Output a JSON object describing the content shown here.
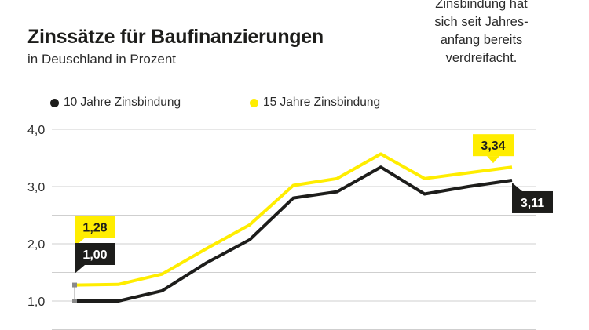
{
  "header": {
    "title": "Zinssätze für Baufinanzierungen",
    "subtitle": "in Deuschland in Prozent"
  },
  "note": {
    "lines": [
      "Zinsbindung hat",
      "sich seit Jahres-",
      "anfang bereits",
      "verdreifacht."
    ]
  },
  "colors": {
    "series_10": "#1d1d1b",
    "series_15": "#ffed00",
    "grid": "#cfcfcf",
    "text": "#1d1d1b"
  },
  "chart_data": {
    "type": "line",
    "title": "Zinssätze für Baufinanzierungen",
    "subtitle": "in Deuschland in Prozent",
    "xlabel": "",
    "ylabel": "",
    "ylim": [
      0.5,
      4.0
    ],
    "yticks": [
      1.0,
      2.0,
      3.0,
      4.0
    ],
    "ytick_labels": [
      "1,0",
      "2,0",
      "3,0",
      "4,0"
    ],
    "grid": true,
    "legend_position": "top-left",
    "x": [
      0,
      1,
      2,
      3,
      4,
      5,
      6,
      7,
      8,
      9,
      10
    ],
    "series": [
      {
        "name": "10 Jahre Zinsbindung",
        "color": "#1d1d1b",
        "values": [
          1.0,
          1.0,
          1.18,
          1.66,
          2.07,
          2.8,
          2.91,
          3.34,
          2.87,
          3.0,
          3.11
        ]
      },
      {
        "name": "15 Jahre Zinsbindung",
        "color": "#ffed00",
        "values": [
          1.28,
          1.29,
          1.47,
          1.91,
          2.33,
          3.02,
          3.14,
          3.57,
          3.14,
          3.24,
          3.34
        ]
      }
    ],
    "annotations": [
      {
        "series": 1,
        "index": 0,
        "label": "1,28"
      },
      {
        "series": 0,
        "index": 0,
        "label": "1,00"
      },
      {
        "series": 1,
        "index": 10,
        "label": "3,34"
      },
      {
        "series": 0,
        "index": 10,
        "label": "3,11"
      }
    ]
  }
}
